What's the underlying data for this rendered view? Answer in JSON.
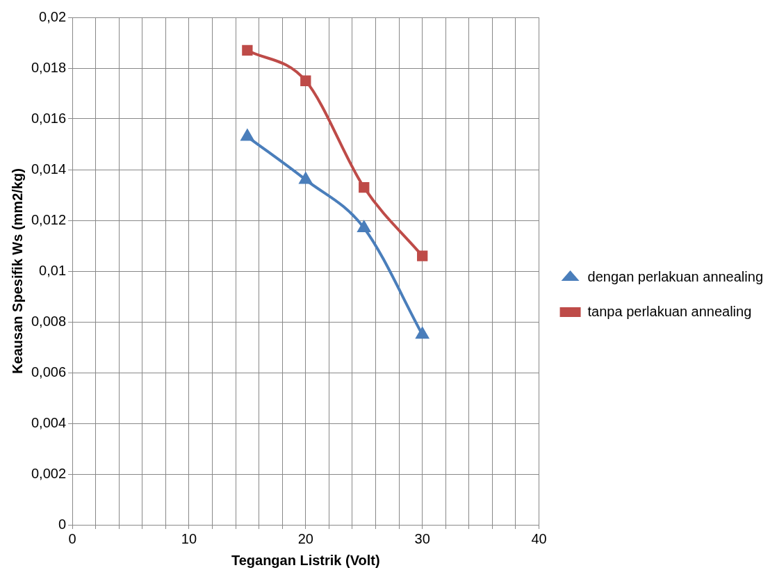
{
  "chart_data": {
    "type": "line",
    "xlabel": "Tegangan Listrik (Volt)",
    "ylabel": "Keausan Spesifik Ws (mm2/kg)",
    "x": [
      15,
      20,
      25,
      30
    ],
    "series": [
      {
        "name": "dengan perlakuan annealing",
        "color": "#4a7ebb",
        "marker": "triangle",
        "values": [
          0.0153,
          0.0136,
          0.0117,
          0.0075
        ]
      },
      {
        "name": "tanpa perlakuan annealing",
        "color": "#be4b48",
        "marker": "square",
        "values": [
          0.0187,
          0.0175,
          0.0133,
          0.0106
        ]
      }
    ],
    "xlim": [
      0,
      40
    ],
    "xticks": [
      0,
      {
        "value": 2,
        "label": null
      },
      {
        "value": 4,
        "label": null
      },
      {
        "value": 6,
        "label": null
      },
      {
        "value": 8,
        "label": null
      },
      10,
      {
        "value": 12,
        "label": null
      },
      {
        "value": 14,
        "label": null
      },
      {
        "value": 16,
        "label": null
      },
      {
        "value": 18,
        "label": null
      },
      20,
      {
        "value": 22,
        "label": null
      },
      {
        "value": 24,
        "label": null
      },
      {
        "value": 26,
        "label": null
      },
      {
        "value": 28,
        "label": null
      },
      30,
      {
        "value": 32,
        "label": null
      },
      {
        "value": 34,
        "label": null
      },
      {
        "value": 36,
        "label": null
      },
      {
        "value": 38,
        "label": null
      },
      40
    ],
    "ylim": [
      0,
      0.02
    ],
    "yticks": [
      0,
      {
        "value": 0.002,
        "label": "0,002"
      },
      {
        "value": 0.004,
        "label": "0,004"
      },
      {
        "value": 0.006,
        "label": "0,006"
      },
      {
        "value": 0.008,
        "label": "0,008"
      },
      {
        "value": 0.01,
        "label": "0,01"
      },
      {
        "value": 0.012,
        "label": "0,012"
      },
      {
        "value": 0.014,
        "label": "0,014"
      },
      {
        "value": 0.016,
        "label": "0,016"
      },
      {
        "value": 0.018,
        "label": "0,018"
      },
      {
        "value": 0.02,
        "label": "0,02"
      }
    ],
    "grid": true,
    "legend": "right",
    "line_style": "solid"
  }
}
